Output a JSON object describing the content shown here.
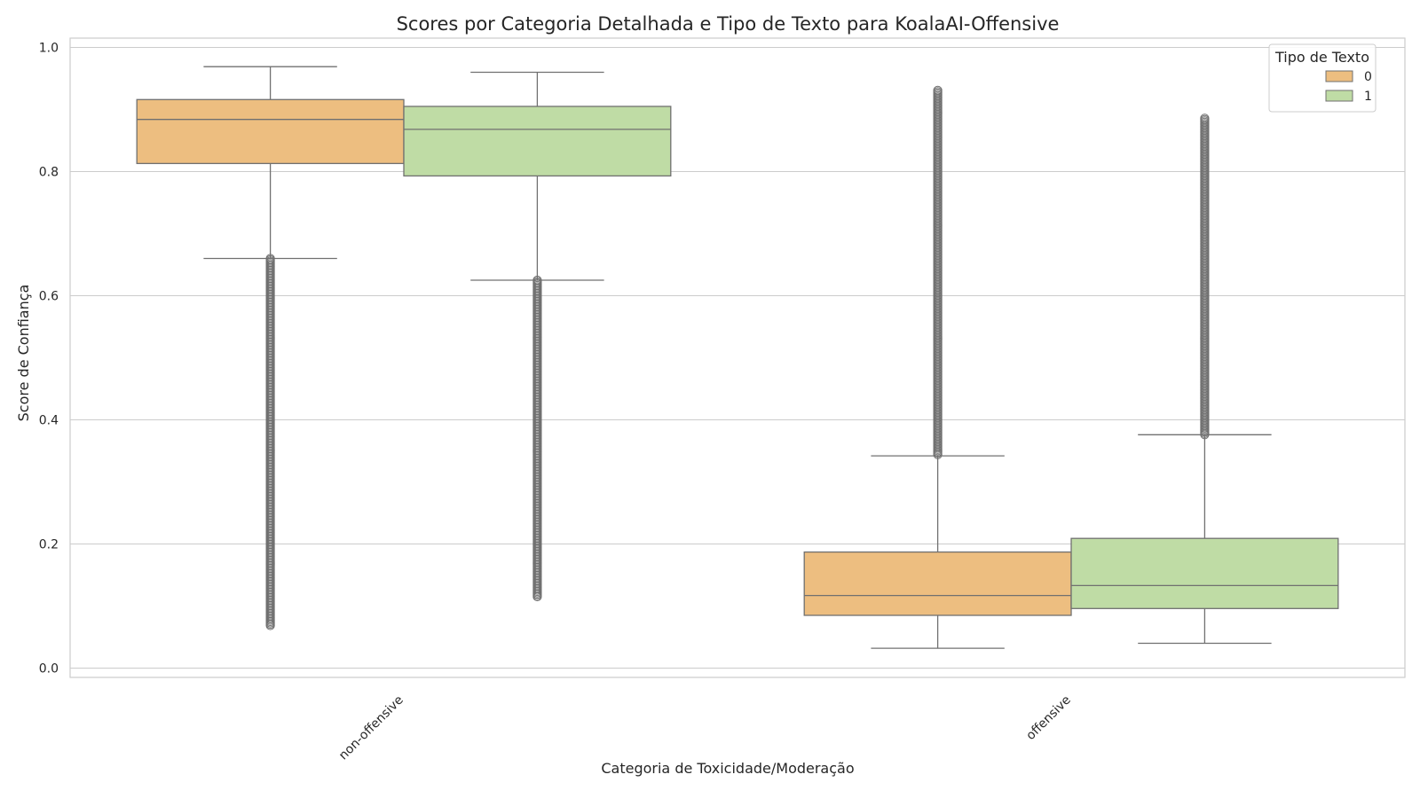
{
  "chart_data": {
    "type": "box",
    "title": "Scores por Categoria Detalhada e Tipo de Texto para KoalaAI-Offensive",
    "xlabel": "Categoria de Toxicidade/Moderação",
    "ylabel": "Score de Confiança",
    "ylim": [
      -0.015,
      1.015
    ],
    "yticks": [
      "0.0",
      "0.2",
      "0.4",
      "0.6",
      "0.8",
      "1.0"
    ],
    "categories": [
      "non-offensive",
      "offensive"
    ],
    "grid": true,
    "legend": {
      "title": "Tipo de Texto",
      "position": "top-right"
    },
    "series": [
      {
        "name": "0",
        "color": "#edbe80",
        "boxes": [
          {
            "category": "non-offensive",
            "whislo": 0.66,
            "q1": 0.813,
            "med": 0.884,
            "q3": 0.916,
            "whishi": 0.969,
            "fliers_range": [
              0.068,
              0.66
            ]
          },
          {
            "category": "offensive",
            "whislo": 0.032,
            "q1": 0.085,
            "med": 0.117,
            "q3": 0.187,
            "whishi": 0.342,
            "fliers_range": [
              0.342,
              0.931
            ]
          }
        ]
      },
      {
        "name": "1",
        "color": "#bfdca5",
        "boxes": [
          {
            "category": "non-offensive",
            "whislo": 0.625,
            "q1": 0.793,
            "med": 0.868,
            "q3": 0.905,
            "whishi": 0.96,
            "fliers_range": [
              0.115,
              0.625
            ]
          },
          {
            "category": "offensive",
            "whislo": 0.04,
            "q1": 0.096,
            "med": 0.133,
            "q3": 0.209,
            "whishi": 0.376,
            "fliers_range": [
              0.376,
              0.886
            ]
          }
        ]
      }
    ]
  }
}
